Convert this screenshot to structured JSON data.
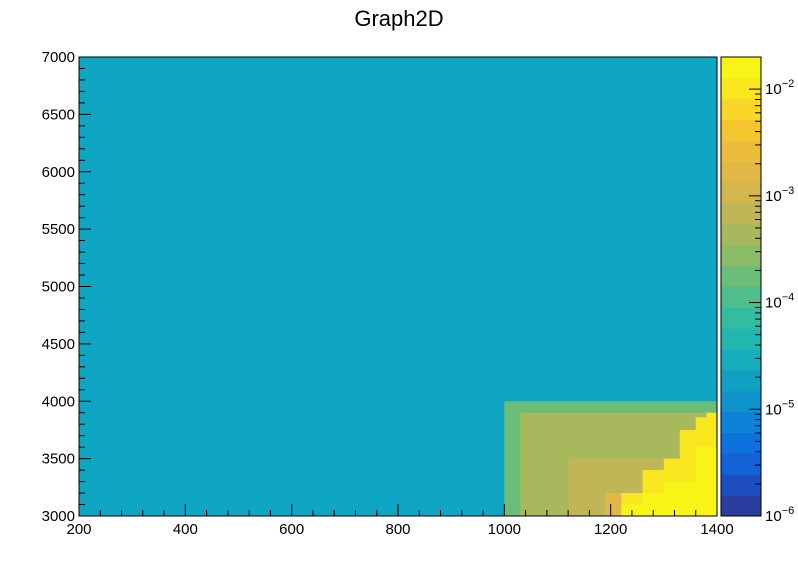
{
  "chart_data": {
    "type": "heatmap",
    "title": "Graph2D",
    "xlabel": "",
    "ylabel": "",
    "xlim": [
      200,
      1400
    ],
    "ylim": [
      3000,
      7000
    ],
    "x_ticks": [
      "200",
      "400",
      "600",
      "800",
      "1000",
      "1200",
      "1400"
    ],
    "y_ticks": [
      "3000",
      "3500",
      "4000",
      "4500",
      "5000",
      "5500",
      "6000",
      "6500",
      "7000"
    ],
    "colorbar": {
      "scale": "log",
      "range": [
        1e-06,
        0.02
      ],
      "tick_values": [
        1e-06,
        1e-05,
        0.0001,
        0.001,
        0.01
      ],
      "tick_base": [
        "10",
        "10",
        "10",
        "10",
        "10"
      ],
      "tick_exponents": [
        "-6",
        "-5",
        "-4",
        "-3",
        "-2"
      ],
      "palette": [
        "#2c3e9d",
        "#1d4ec0",
        "#1460d6",
        "#0f72dc",
        "#0e82d6",
        "#0e92cc",
        "#10a1c2",
        "#16aebc",
        "#22b6b0",
        "#35bc9e",
        "#4fbe8c",
        "#6cbd78",
        "#8bbb66",
        "#a8b85c",
        "#c0b657",
        "#d3b64e",
        "#e1b846",
        "#ecbd3a",
        "#f4c62f",
        "#f9d627",
        "#f9e61f",
        "#f8f416"
      ],
      "background_color": "#0fa6c4"
    },
    "cells": [
      {
        "x": [
          1000,
          1400
        ],
        "y": [
          3000,
          4000
        ],
        "value": 0.00015
      },
      {
        "x": [
          1030,
          1400
        ],
        "y": [
          3000,
          3900
        ],
        "value": 0.00035
      },
      {
        "x": [
          1120,
          1400
        ],
        "y": [
          3000,
          3500
        ],
        "value": 0.0006
      },
      {
        "x": [
          1190,
          1400
        ],
        "y": [
          3000,
          3200
        ],
        "value": 0.0015
      },
      {
        "x": [
          1220,
          1400
        ],
        "y": [
          3000,
          3200
        ],
        "value": 0.01
      },
      {
        "x": [
          1260,
          1400
        ],
        "y": [
          3000,
          3400
        ],
        "value": 0.01
      },
      {
        "x": [
          1300,
          1400
        ],
        "y": [
          3000,
          3500
        ],
        "value": 0.012
      },
      {
        "x": [
          1330,
          1400
        ],
        "y": [
          3000,
          3750
        ],
        "value": 0.012
      },
      {
        "x": [
          1360,
          1400
        ],
        "y": [
          3000,
          3860
        ],
        "value": 0.012
      },
      {
        "x": [
          1380,
          1400
        ],
        "y": [
          3000,
          3900
        ],
        "value": 0.012
      },
      {
        "x": [
          1220,
          1260
        ],
        "y": [
          3000,
          3100
        ],
        "value": 0.02
      },
      {
        "x": [
          1260,
          1300
        ],
        "y": [
          3000,
          3200
        ],
        "value": 0.02
      },
      {
        "x": [
          1300,
          1360
        ],
        "y": [
          3000,
          3300
        ],
        "value": 0.02
      },
      {
        "x": [
          1360,
          1400
        ],
        "y": [
          3000,
          3400
        ],
        "value": 0.02
      },
      {
        "x": [
          1330,
          1360
        ],
        "y": [
          3100,
          3200
        ],
        "value": 0.018
      },
      {
        "x": [
          1360,
          1400
        ],
        "y": [
          3400,
          3600
        ],
        "value": 0.018
      }
    ]
  }
}
